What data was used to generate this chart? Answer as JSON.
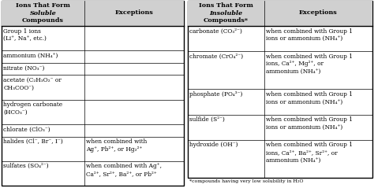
{
  "background_color": "#ffffff",
  "border_color": "#000000",
  "fig_width": 4.74,
  "fig_height": 2.39,
  "left_table": {
    "col1_header_lines": [
      "Ions That Form",
      "Soluble Compounds"
    ],
    "col1_header_italic_word": "Soluble",
    "col2_header": "Exceptions",
    "rows": [
      {
        "col1": "Group 1 ions\n(Li⁺, Na⁺, etc.)",
        "col2": "",
        "lines1": 2,
        "lines2": 0
      },
      {
        "col1": "ammonium (NH₄⁺)",
        "col2": "",
        "lines1": 1,
        "lines2": 0
      },
      {
        "col1": "nitrate (NO₃⁻)",
        "col2": "",
        "lines1": 1,
        "lines2": 0
      },
      {
        "col1": "acetate (C₂H₃O₂⁻ or\nCH₃COO⁻)",
        "col2": "",
        "lines1": 2,
        "lines2": 0
      },
      {
        "col1": "hydrogen carbonate\n(HCO₃⁻)",
        "col2": "",
        "lines1": 2,
        "lines2": 0
      },
      {
        "col1": "chlorate (ClO₃⁻)",
        "col2": "",
        "lines1": 1,
        "lines2": 0
      },
      {
        "col1": "halides (Cl⁻, Br⁻, I⁻)",
        "col2": "when combined with\nAg⁺, Pb²⁺, or Hg₂²⁺",
        "lines1": 1,
        "lines2": 2
      },
      {
        "col1": "sulfates (SO₄²⁻)",
        "col2": "when combined with Ag⁺,\nCa²⁺, Sr²⁺, Ba²⁺, or Pb²⁺",
        "lines1": 1,
        "lines2": 2
      }
    ]
  },
  "right_table": {
    "col1_header_lines": [
      "Ions That Form",
      "Insoluble Compounds*"
    ],
    "col1_header_italic_word": "Insoluble",
    "col2_header": "Exceptions",
    "rows": [
      {
        "col1": "carbonate (CO₃²⁻)",
        "col2": "when combined with Group 1\nions or ammonium (NH₄⁺)",
        "lines1": 1,
        "lines2": 2
      },
      {
        "col1": "chromate (CrO₄²⁻)",
        "col2": "when combined with Group 1\nions, Ca²⁺, Mg²⁺, or\nammonium (NH₄⁺)",
        "lines1": 1,
        "lines2": 3
      },
      {
        "col1": "phosphate (PO₄³⁻)",
        "col2": "when combined with Group 1\nions or ammonium (NH₄⁺)",
        "lines1": 1,
        "lines2": 2
      },
      {
        "col1": "sulfide (S²⁻)",
        "col2": "when combined with Group 1\nions or ammonium (NH₄⁺)",
        "lines1": 1,
        "lines2": 2
      },
      {
        "col1": "hydroxide (OH⁻)",
        "col2": "when combined with Group 1\nions, Ca²⁺, Ba²⁺, Sr²⁺, or\nammonium (NH₄⁺)",
        "lines1": 1,
        "lines2": 3
      }
    ],
    "footnote": "*compounds having very low solubility in H₂O"
  }
}
